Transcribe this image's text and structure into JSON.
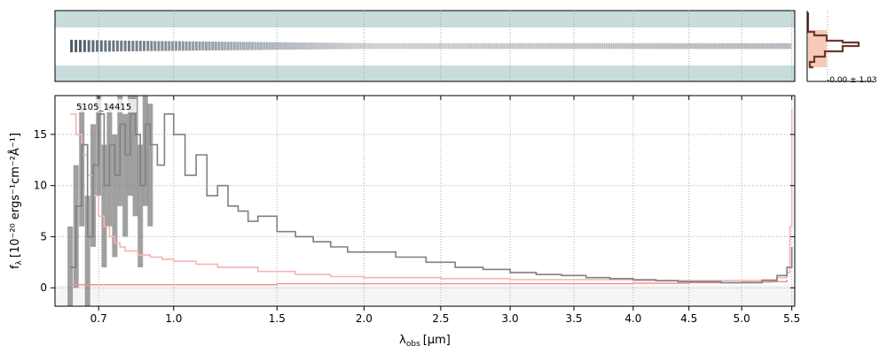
{
  "chart_data": {
    "type": "line",
    "object_label": "5105_14415",
    "histogram_label": "-0.00 ± 1.03",
    "xlabel_prefix": "λ",
    "xlabel_sub": "obs",
    "xlabel_unit": "[μm]",
    "ylabel_main": "f",
    "ylabel_sub": "λ",
    "ylabel_units": "[10⁻²⁰ ergs⁻¹cm⁻²Å⁻¹]",
    "x_ticks": [
      0.7,
      1.0,
      1.5,
      2.0,
      2.5,
      3.0,
      3.5,
      4.0,
      4.5,
      5.0,
      5.5
    ],
    "x_tick_labels": [
      "0.7",
      "1.0",
      "1.5",
      "2.0",
      "2.5",
      "3.0",
      "3.5",
      "4.0",
      "4.5",
      "5.0",
      "5.5"
    ],
    "y_ticks": [
      0,
      5,
      10,
      15
    ],
    "y_tick_labels": [
      "0",
      "5",
      "10",
      "15"
    ],
    "ylim": [
      -1.8,
      18.8
    ],
    "colors": {
      "flux": "#808080",
      "error": "#f4b4b4",
      "model": "#f09090",
      "sky": "#c8dcdc",
      "trace": "#1a2a3a",
      "hist": "#6b3a2e",
      "hist_fill": "#f7c9b8"
    },
    "series": [
      {
        "key": "flux",
        "x": [
          0.6,
          0.62,
          0.64,
          0.66,
          0.68,
          0.7,
          0.72,
          0.74,
          0.76,
          0.78,
          0.8,
          0.82,
          0.84,
          0.86,
          0.88,
          0.9,
          0.93,
          0.96,
          1.0,
          1.05,
          1.1,
          1.15,
          1.2,
          1.25,
          1.3,
          1.35,
          1.4,
          1.5,
          1.6,
          1.7,
          1.8,
          1.9,
          2.0,
          2.2,
          2.4,
          2.6,
          2.8,
          3.0,
          3.2,
          3.4,
          3.6,
          3.8,
          4.0,
          4.2,
          4.4,
          4.6,
          4.8,
          5.0,
          5.2,
          5.35,
          5.45,
          5.5
        ],
        "y": [
          2,
          8,
          14,
          5,
          12,
          17,
          10,
          14,
          11,
          16,
          13,
          17,
          15,
          10,
          16,
          14,
          12,
          17,
          15,
          11,
          13,
          9,
          10,
          8,
          7.5,
          6.5,
          7,
          5.5,
          5,
          4.5,
          4,
          3.5,
          3.5,
          3,
          2.5,
          2,
          1.8,
          1.5,
          1.3,
          1.2,
          1,
          0.9,
          0.8,
          0.7,
          0.6,
          0.6,
          0.5,
          0.5,
          0.7,
          1.2,
          2,
          4
        ]
      },
      {
        "key": "error",
        "x": [
          0.6,
          0.62,
          0.64,
          0.66,
          0.68,
          0.7,
          0.72,
          0.74,
          0.76,
          0.78,
          0.8,
          0.85,
          0.9,
          0.95,
          1.0,
          1.1,
          1.2,
          1.4,
          1.6,
          1.8,
          2.0,
          2.5,
          3.0,
          3.5,
          4.0,
          4.5,
          5.0,
          5.2,
          5.35,
          5.45,
          5.48,
          5.5
        ],
        "y": [
          17,
          15,
          13,
          11,
          9,
          7,
          6,
          5,
          4.4,
          4,
          3.6,
          3.2,
          3,
          2.8,
          2.6,
          2.3,
          2,
          1.6,
          1.3,
          1.1,
          1,
          0.9,
          0.8,
          0.8,
          0.7,
          0.7,
          0.7,
          0.8,
          1,
          1.5,
          6,
          17.5
        ]
      },
      {
        "key": "model",
        "x": [
          0.6,
          0.7,
          0.8,
          1.0,
          1.5,
          2.0,
          3.0,
          4.0,
          4.5,
          5.0,
          5.3,
          5.45
        ],
        "y": [
          0.3,
          0.3,
          0.3,
          0.3,
          0.4,
          0.4,
          0.4,
          0.45,
          0.5,
          0.55,
          0.6,
          0.8
        ]
      }
    ]
  }
}
